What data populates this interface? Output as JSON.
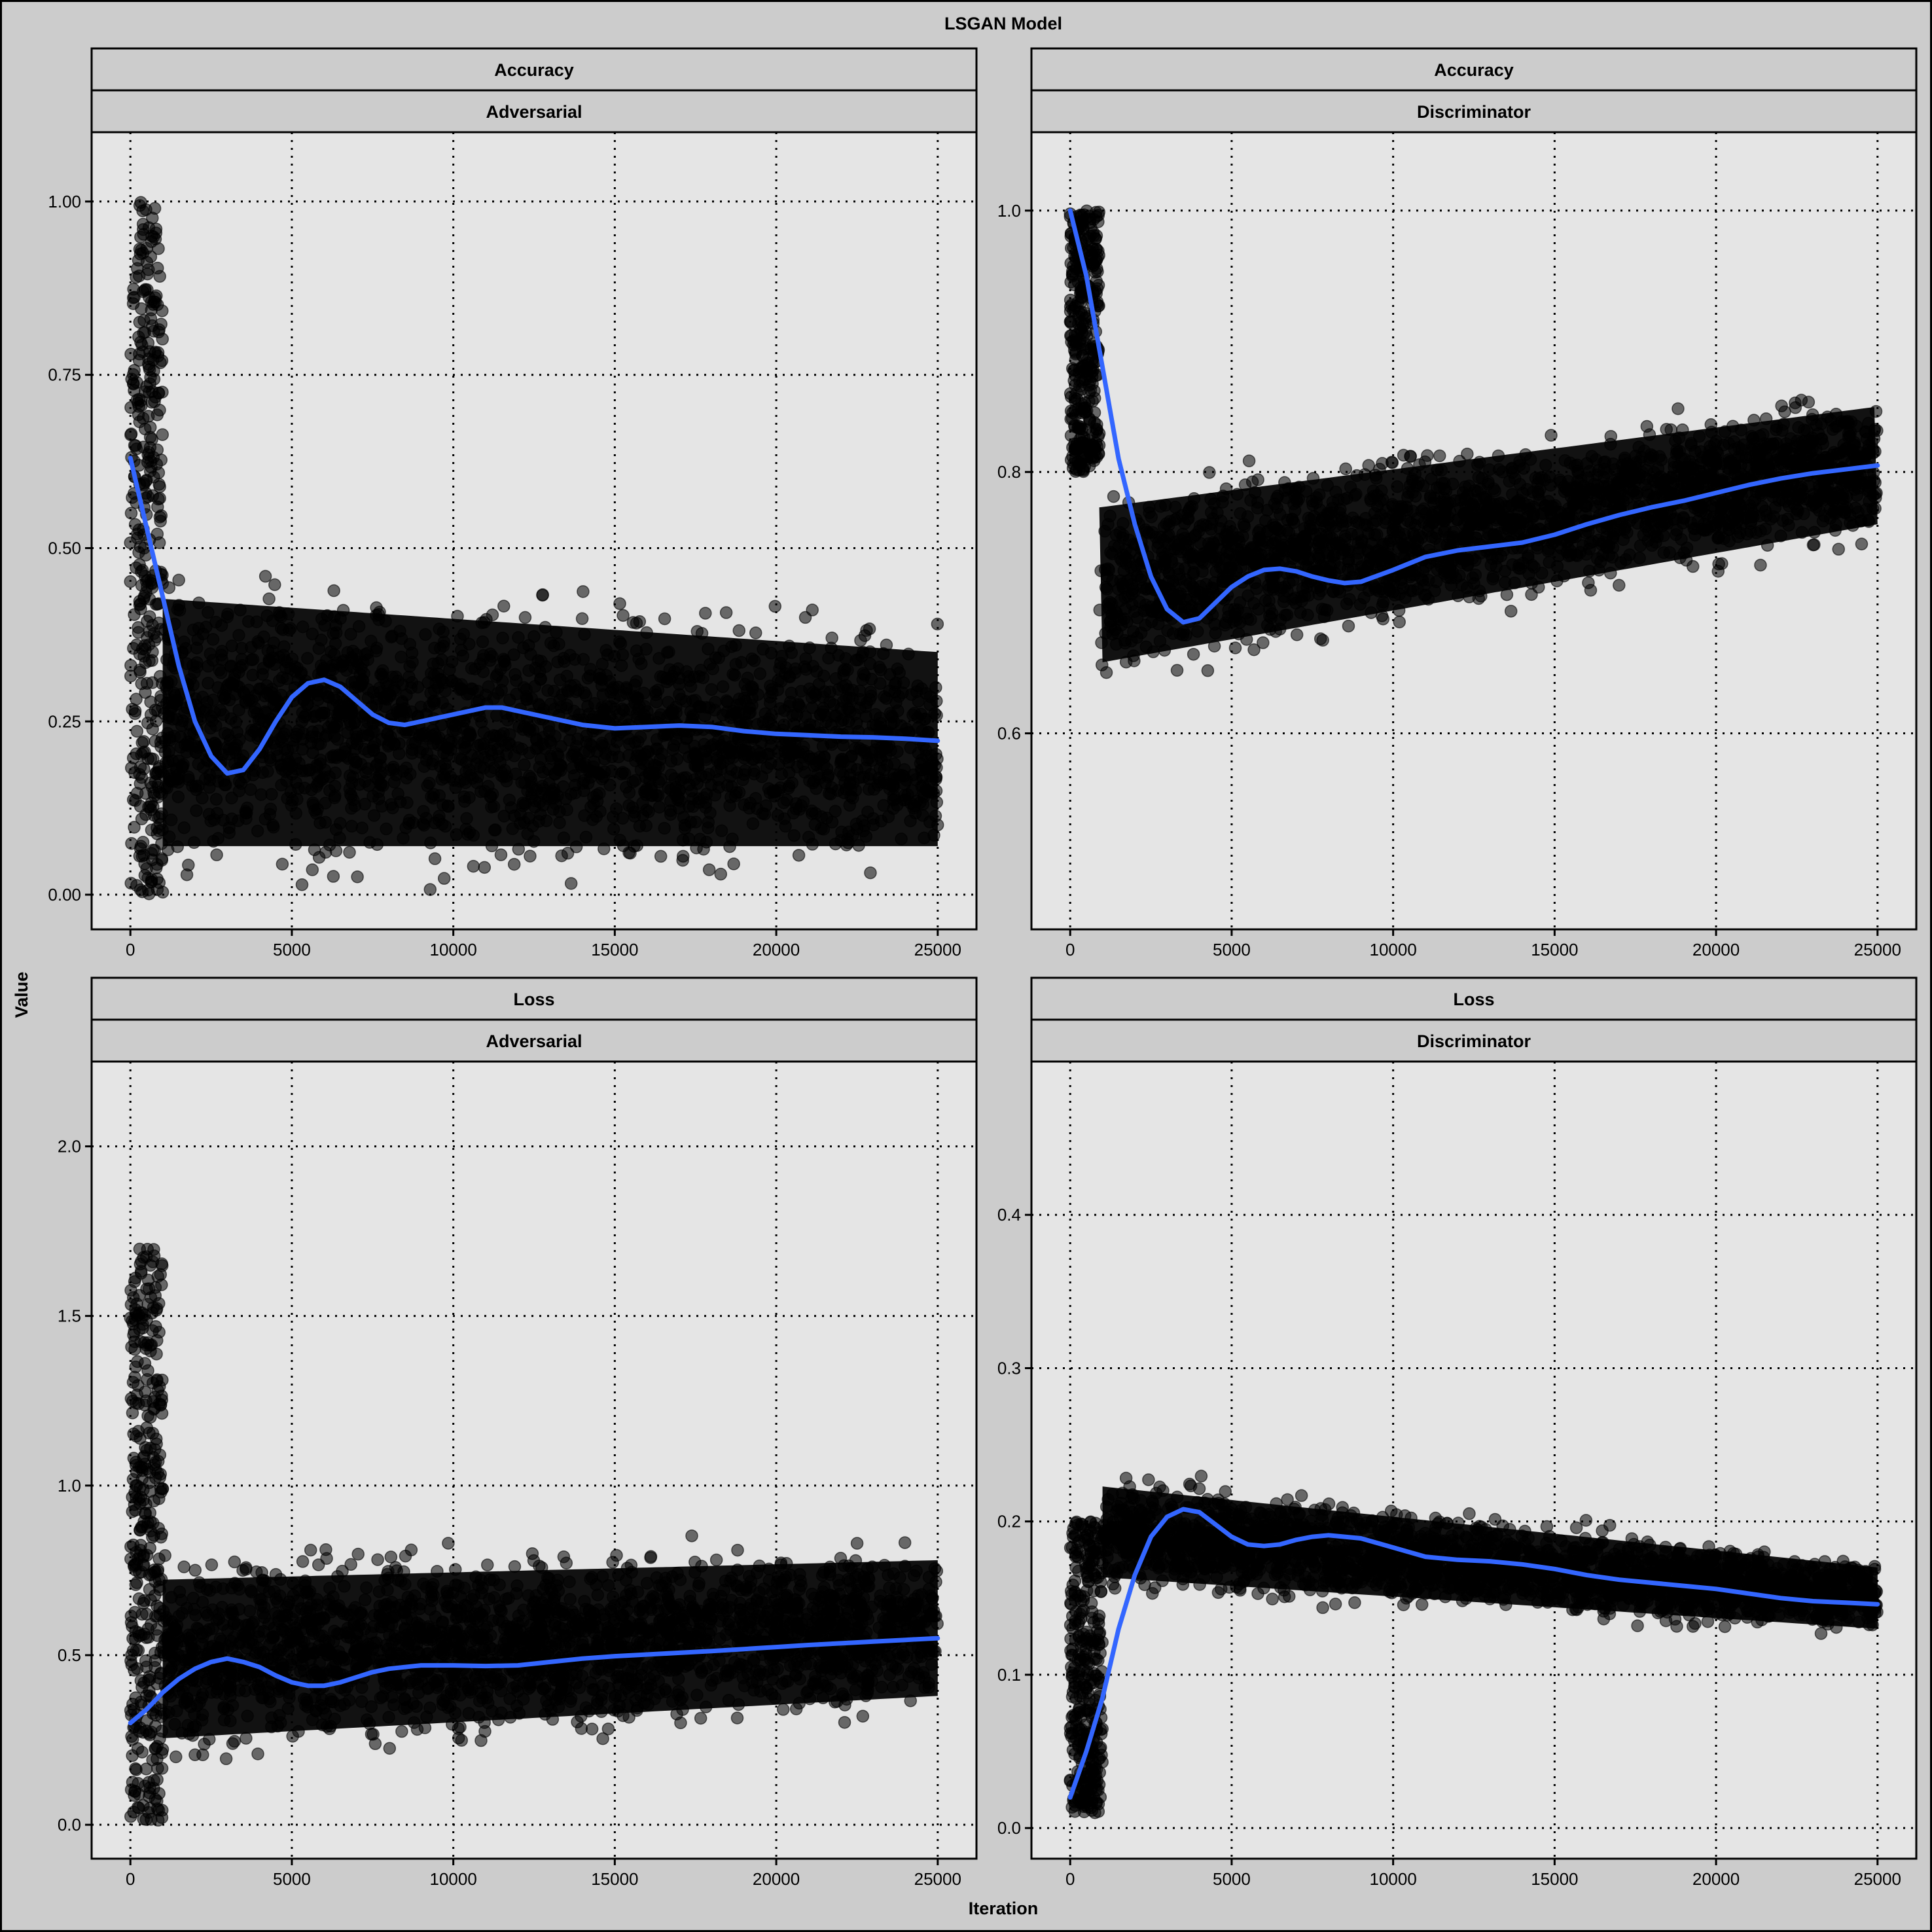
{
  "figure": {
    "title": "LSGAN Model",
    "xlabel": "Iteration",
    "ylabel": "Value"
  },
  "chart_data": [
    {
      "type": "scatter",
      "strip_top": "Accuracy",
      "strip_bottom": "Adversarial",
      "xlim": [
        -1200,
        26200
      ],
      "ylim": [
        -0.05,
        1.1
      ],
      "xticks": [
        0,
        5000,
        10000,
        15000,
        20000,
        25000
      ],
      "yticks": [
        0.0,
        0.25,
        0.5,
        0.75,
        1.0
      ],
      "ytick_labels": [
        "0.00",
        "0.25",
        "0.50",
        "0.75",
        "1.00"
      ],
      "xtick_labels": [
        "0",
        "5000",
        "10000",
        "15000",
        "20000",
        "25000"
      ],
      "point_model": {
        "early_end": 1000,
        "band_low_start": 0.07,
        "band_low_end": 0.07,
        "band_high_start": 0.43,
        "band_high_end": 0.35,
        "early_low": 0.0,
        "early_high": 1.0
      },
      "series": [
        {
          "kind": "smooth",
          "x": [
            0,
            500,
            1000,
            1500,
            2000,
            2500,
            3000,
            3500,
            4000,
            4500,
            5000,
            5500,
            6000,
            6500,
            7000,
            7500,
            8000,
            8500,
            9000,
            10000,
            11000,
            11500,
            12000,
            13000,
            14000,
            15000,
            16000,
            17000,
            18000,
            19000,
            20000,
            21000,
            22000,
            23000,
            24000,
            25000
          ],
          "y": [
            0.63,
            0.53,
            0.43,
            0.33,
            0.25,
            0.2,
            0.175,
            0.18,
            0.21,
            0.25,
            0.285,
            0.305,
            0.31,
            0.3,
            0.28,
            0.26,
            0.248,
            0.245,
            0.25,
            0.26,
            0.27,
            0.27,
            0.265,
            0.255,
            0.245,
            0.24,
            0.242,
            0.244,
            0.242,
            0.236,
            0.232,
            0.23,
            0.228,
            0.227,
            0.225,
            0.222
          ]
        }
      ]
    },
    {
      "type": "scatter",
      "strip_top": "Accuracy",
      "strip_bottom": "Discriminator",
      "xlim": [
        -1200,
        26200
      ],
      "ylim": [
        0.45,
        1.06
      ],
      "xticks": [
        0,
        5000,
        10000,
        15000,
        20000,
        25000
      ],
      "yticks": [
        0.6,
        0.8,
        1.0
      ],
      "ytick_labels": [
        "0.6",
        "0.8",
        "1.0"
      ],
      "xtick_labels": [
        "0",
        "5000",
        "10000",
        "15000",
        "20000",
        "25000"
      ],
      "point_model": {
        "early_end": 900,
        "band_low_start": 0.65,
        "band_low_end": 0.76,
        "band_high_start": 0.77,
        "band_high_end": 0.85,
        "early_low": 0.8,
        "early_high": 1.0
      },
      "series": [
        {
          "kind": "smooth",
          "x": [
            0,
            500,
            1000,
            1500,
            2000,
            2500,
            3000,
            3500,
            4000,
            4500,
            5000,
            5500,
            6000,
            6500,
            7000,
            7500,
            8000,
            8500,
            9000,
            10000,
            11000,
            12000,
            13000,
            14000,
            15000,
            16000,
            17000,
            18000,
            19000,
            20000,
            21000,
            22000,
            23000,
            24000,
            25000
          ],
          "y": [
            1.0,
            0.95,
            0.88,
            0.81,
            0.76,
            0.72,
            0.695,
            0.685,
            0.688,
            0.7,
            0.712,
            0.72,
            0.725,
            0.726,
            0.724,
            0.72,
            0.717,
            0.715,
            0.716,
            0.725,
            0.735,
            0.74,
            0.743,
            0.746,
            0.752,
            0.76,
            0.767,
            0.773,
            0.778,
            0.784,
            0.79,
            0.795,
            0.799,
            0.802,
            0.805
          ]
        }
      ]
    },
    {
      "type": "scatter",
      "strip_top": "Loss",
      "strip_bottom": "Adversarial",
      "xlim": [
        -1200,
        26200
      ],
      "ylim": [
        -0.1,
        2.25
      ],
      "xticks": [
        0,
        5000,
        10000,
        15000,
        20000,
        25000
      ],
      "yticks": [
        0.0,
        0.5,
        1.0,
        1.5,
        2.0
      ],
      "ytick_labels": [
        "0.0",
        "0.5",
        "1.0",
        "1.5",
        "2.0"
      ],
      "xtick_labels": [
        "0",
        "5000",
        "10000",
        "15000",
        "20000",
        "25000"
      ],
      "point_model": {
        "early_end": 1000,
        "band_low_start": 0.25,
        "band_low_end": 0.38,
        "band_high_start": 0.72,
        "band_high_end": 0.78,
        "early_low": 0.0,
        "early_high": 1.7
      },
      "series": [
        {
          "kind": "smooth",
          "x": [
            0,
            500,
            1000,
            1500,
            2000,
            2500,
            3000,
            3500,
            4000,
            4500,
            5000,
            5500,
            6000,
            6500,
            7000,
            7500,
            8000,
            8500,
            9000,
            10000,
            11000,
            12000,
            13000,
            14000,
            15000,
            16000,
            17000,
            18000,
            19000,
            20000,
            21000,
            22000,
            23000,
            24000,
            25000
          ],
          "y": [
            0.3,
            0.34,
            0.39,
            0.43,
            0.46,
            0.48,
            0.49,
            0.48,
            0.465,
            0.44,
            0.42,
            0.41,
            0.41,
            0.42,
            0.435,
            0.45,
            0.46,
            0.465,
            0.47,
            0.47,
            0.468,
            0.47,
            0.48,
            0.49,
            0.497,
            0.502,
            0.507,
            0.512,
            0.518,
            0.524,
            0.53,
            0.535,
            0.54,
            0.545,
            0.55
          ]
        }
      ]
    },
    {
      "type": "scatter",
      "strip_top": "Loss",
      "strip_bottom": "Discriminator",
      "xlim": [
        -1200,
        26200
      ],
      "ylim": [
        -0.02,
        0.5
      ],
      "xticks": [
        0,
        5000,
        10000,
        15000,
        20000,
        25000
      ],
      "yticks": [
        0.0,
        0.1,
        0.2,
        0.3,
        0.4
      ],
      "ytick_labels": [
        "0.0",
        "0.1",
        "0.2",
        "0.3",
        "0.4"
      ],
      "xtick_labels": [
        "0",
        "5000",
        "10000",
        "15000",
        "20000",
        "25000"
      ],
      "point_model": {
        "early_end": 1000,
        "band_low_start": 0.165,
        "band_low_end": 0.13,
        "band_high_start": 0.225,
        "band_high_end": 0.17,
        "early_low": 0.01,
        "early_high": 0.2
      },
      "series": [
        {
          "kind": "smooth",
          "x": [
            0,
            500,
            1000,
            1500,
            2000,
            2500,
            3000,
            3500,
            4000,
            4500,
            5000,
            5500,
            6000,
            6500,
            7000,
            7500,
            8000,
            8500,
            9000,
            10000,
            11000,
            12000,
            13000,
            14000,
            15000,
            16000,
            17000,
            18000,
            19000,
            20000,
            21000,
            22000,
            23000,
            24000,
            25000
          ],
          "y": [
            0.02,
            0.05,
            0.085,
            0.13,
            0.165,
            0.19,
            0.203,
            0.208,
            0.206,
            0.198,
            0.19,
            0.185,
            0.184,
            0.185,
            0.188,
            0.19,
            0.191,
            0.19,
            0.189,
            0.183,
            0.177,
            0.175,
            0.174,
            0.172,
            0.169,
            0.165,
            0.162,
            0.16,
            0.158,
            0.156,
            0.153,
            0.15,
            0.148,
            0.147,
            0.146
          ]
        }
      ]
    }
  ]
}
